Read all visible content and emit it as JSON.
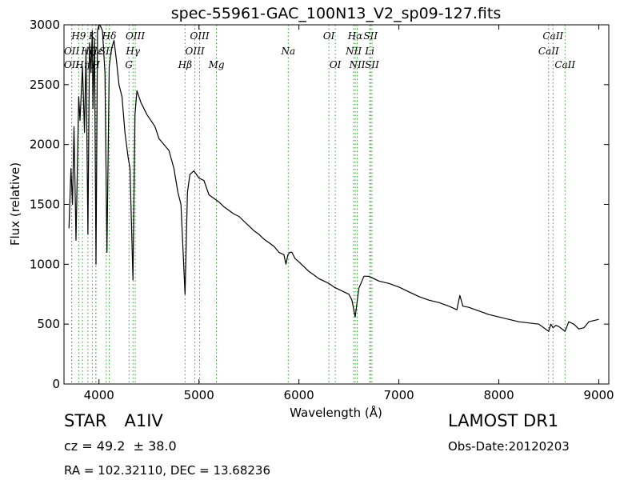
{
  "chart_data": {
    "type": "line",
    "title": "spec-55961-GAC_100N13_V2_sp09-127.fits",
    "xlabel": "Wavelength (Å)",
    "ylabel": "Flux (relative)",
    "xlim": [
      3650,
      9100
    ],
    "ylim": [
      0,
      3000
    ],
    "xticks": [
      4000,
      5000,
      6000,
      7000,
      8000,
      9000
    ],
    "yticks": [
      0,
      500,
      1000,
      1500,
      2000,
      2500,
      3000
    ],
    "grid": false,
    "line_color": "#000000",
    "marker_color": "#2ca02c",
    "series": [
      {
        "x": [
          3700,
          3720,
          3735,
          3750,
          3770,
          3797,
          3810,
          3835,
          3855,
          3870,
          3889,
          3905,
          3920,
          3933,
          3940,
          3955,
          3970,
          3985,
          4000,
          4015,
          4035,
          4060,
          4080,
          4102,
          4125,
          4150,
          4175,
          4200,
          4230,
          4260,
          4290,
          4310,
          4340,
          4360,
          4380,
          4400,
          4420,
          4450,
          4480,
          4520,
          4560,
          4600,
          4650,
          4700,
          4750,
          4790,
          4820,
          4861,
          4885,
          4910,
          4950,
          5000,
          5050,
          5100,
          5150,
          5200,
          5250,
          5300,
          5350,
          5400,
          5450,
          5500,
          5550,
          5600,
          5650,
          5700,
          5750,
          5800,
          5850,
          5870,
          5890,
          5910,
          5930,
          5960,
          6000,
          6050,
          6100,
          6150,
          6200,
          6250,
          6300,
          6350,
          6400,
          6450,
          6500,
          6530,
          6563,
          6600,
          6650,
          6700,
          6750,
          6800,
          6900,
          7000,
          7100,
          7200,
          7300,
          7400,
          7500,
          7580,
          7610,
          7640,
          7700,
          7800,
          7900,
          8000,
          8100,
          8200,
          8300,
          8400,
          8498,
          8520,
          8542,
          8570,
          8600,
          8662,
          8700,
          8750,
          8800,
          8850,
          8900,
          8950,
          9000
        ],
        "y": [
          1300,
          1800,
          1500,
          2150,
          1200,
          2400,
          2200,
          2650,
          2100,
          2800,
          1250,
          2850,
          2600,
          2950,
          2300,
          2880,
          1000,
          2950,
          3000,
          2990,
          2950,
          2600,
          1100,
          2650,
          2800,
          2870,
          2700,
          2500,
          2400,
          2100,
          1900,
          1800,
          870,
          2250,
          2450,
          2400,
          2350,
          2300,
          2250,
          2200,
          2150,
          2050,
          2000,
          1950,
          1800,
          1600,
          1500,
          750,
          1600,
          1750,
          1780,
          1720,
          1700,
          1580,
          1550,
          1520,
          1480,
          1450,
          1420,
          1400,
          1360,
          1320,
          1280,
          1250,
          1210,
          1180,
          1150,
          1100,
          1080,
          1000,
          1080,
          1100,
          1100,
          1050,
          1020,
          980,
          940,
          910,
          880,
          860,
          840,
          810,
          790,
          770,
          750,
          700,
          560,
          800,
          900,
          900,
          880,
          860,
          840,
          810,
          770,
          730,
          700,
          680,
          650,
          620,
          740,
          650,
          640,
          610,
          580,
          560,
          540,
          520,
          510,
          500,
          440,
          500,
          470,
          490,
          480,
          440,
          520,
          500,
          460,
          470,
          520,
          530,
          540
        ]
      }
    ],
    "line_markers": [
      {
        "x": 3727,
        "label": "OII",
        "row": 2
      },
      {
        "x": 3727,
        "label": "OII",
        "row": 3
      },
      {
        "x": 3797,
        "label": "H9",
        "row": 1
      },
      {
        "x": 3835,
        "label": "Hη",
        "row": 3
      },
      {
        "x": 3889,
        "label": "Hζ",
        "row": 2
      },
      {
        "x": 3933,
        "label": "K",
        "row": 1
      },
      {
        "x": 3968,
        "label": "H",
        "row": 3
      },
      {
        "x": 3970,
        "label": "Hε",
        "row": 2
      },
      {
        "x": 4072,
        "label": "SII",
        "row": 2
      },
      {
        "x": 4102,
        "label": "Hδ",
        "row": 1
      },
      {
        "x": 4300,
        "label": "G",
        "row": 3
      },
      {
        "x": 4340,
        "label": "Hγ",
        "row": 2
      },
      {
        "x": 4363,
        "label": "OIII",
        "row": 1
      },
      {
        "x": 4861,
        "label": "Hβ",
        "row": 3
      },
      {
        "x": 4959,
        "label": "OIII",
        "row": 2
      },
      {
        "x": 5007,
        "label": "OIII",
        "row": 1
      },
      {
        "x": 5175,
        "label": "Mg",
        "row": 3
      },
      {
        "x": 5893,
        "label": "Na",
        "row": 2
      },
      {
        "x": 6300,
        "label": "OI",
        "row": 1
      },
      {
        "x": 6364,
        "label": "OI",
        "row": 3
      },
      {
        "x": 6548,
        "label": "NII",
        "row": 2
      },
      {
        "x": 6563,
        "label": "Hα",
        "row": 1
      },
      {
        "x": 6583,
        "label": "NII",
        "row": 3
      },
      {
        "x": 6708,
        "label": "Li",
        "row": 2
      },
      {
        "x": 6717,
        "label": "SII",
        "row": 1
      },
      {
        "x": 6731,
        "label": "SII",
        "row": 3
      },
      {
        "x": 8498,
        "label": "CaII",
        "row": 2
      },
      {
        "x": 8542,
        "label": "CaII",
        "row": 1
      },
      {
        "x": 8662,
        "label": "CaII",
        "row": 3
      }
    ]
  },
  "info": {
    "class_label": "STAR",
    "subclass": "A1IV",
    "cz_text": "cz = 49.2  ± 38.0",
    "radec_text": "RA = 102.32110, DEC = 13.68236",
    "survey": "LAMOST DR1",
    "obs_date": "Obs-Date:20120203"
  }
}
